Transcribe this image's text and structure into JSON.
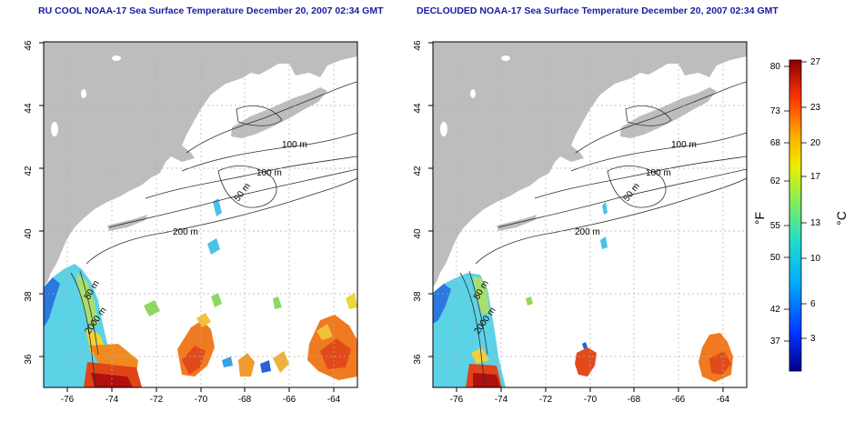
{
  "panels": [
    {
      "title": "RU COOL NOAA-17 Sea Surface Temperature December 20, 2007 02:34 GMT",
      "variant": "cool",
      "contour_labels": [
        "100 m",
        "100 m",
        "50 m",
        "200 m",
        "50 m",
        "2000 m"
      ]
    },
    {
      "title": "DECLOUDED NOAA-17 Sea Surface Temperature December 20, 2007 02:34 GMT",
      "variant": "declouded",
      "contour_labels": [
        "100 m",
        "100 m",
        "50 m",
        "200 m",
        "50 m",
        "2000 m"
      ]
    }
  ],
  "axes": {
    "lon_ticks": [
      "-76",
      "-74",
      "-72",
      "-70",
      "-68",
      "-66",
      "-64"
    ],
    "lat_ticks": [
      "46",
      "44",
      "42",
      "40",
      "38",
      "36"
    ]
  },
  "colorbar": {
    "f_ticks": [
      "80",
      "73",
      "68",
      "62",
      "55",
      "50",
      "42",
      "37"
    ],
    "c_ticks": [
      "27",
      "23",
      "20",
      "17",
      "13",
      "10",
      "6",
      "3"
    ],
    "f_label": "°F",
    "c_label": "°C"
  },
  "colors": {
    "land": "#bdbdbd",
    "ocean": "#ffffff",
    "title": "#1a1aa6",
    "grid": "#b0b0b0"
  }
}
